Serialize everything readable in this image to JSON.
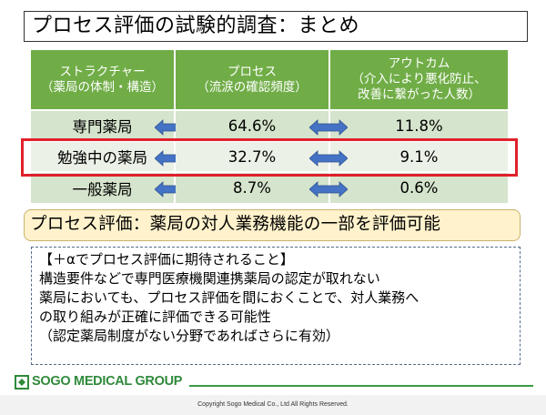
{
  "slide": {
    "title": "プロセス評価の試験的調査：まとめ"
  },
  "table": {
    "headers": [
      {
        "line1": "ストラクチャー",
        "line2": "（薬局の体制・構造）",
        "line3": ""
      },
      {
        "line1": "プロセス",
        "line2": "（流涙の確認頻度）",
        "line3": ""
      },
      {
        "line1": "アウトカム",
        "line2": "（介入により悪化防止、",
        "line3": "改善に繋がった人数）"
      }
    ],
    "rows": [
      {
        "structure": "専門薬局",
        "process": "64.6%",
        "outcome": "11.8%"
      },
      {
        "structure": "勉強中の薬局",
        "process": "32.7%",
        "outcome": "9.1%"
      },
      {
        "structure": "一般薬局",
        "process": "8.7%",
        "outcome": "0.6%"
      }
    ],
    "arrow_color": "#4472c4",
    "highlight_color": "#e0212c",
    "header_color": "#70ad47"
  },
  "callout": {
    "text": "プロセス評価：薬局の対人業務機能の一部を評価可能"
  },
  "note": {
    "lines": [
      "【＋αでプロセス評価に期待されること】",
      "構造要件などで専門医療機関連携薬局の認定が取れない",
      "薬局においても、プロセス評価を間におくことで、対人業務へ",
      "の取り組みが正確に評価できる可能性",
      "（認定薬局制度がない分野であればさらに有効）"
    ]
  },
  "footer": {
    "logo_text": "SOGO MEDICAL GROUP",
    "copyright": "Copyright Sogo Medical Co., Ltd All Rights Reserved."
  }
}
